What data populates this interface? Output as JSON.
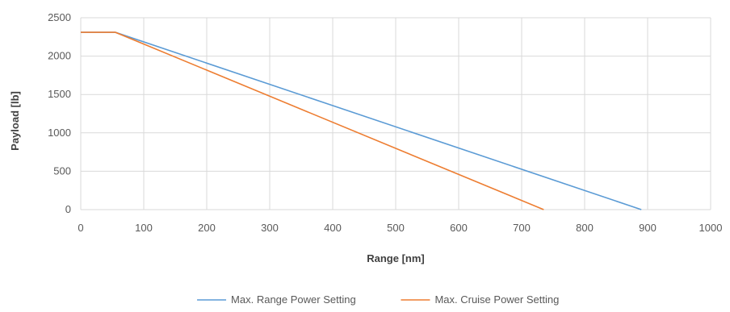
{
  "chart_data": {
    "type": "line",
    "title": "",
    "xlabel": "Range [nm]",
    "ylabel": "Payload [lb]",
    "xlim": [
      0,
      1000
    ],
    "ylim": [
      0,
      2500
    ],
    "x_ticks": [
      0,
      100,
      200,
      300,
      400,
      500,
      600,
      700,
      800,
      900,
      1000
    ],
    "y_ticks": [
      0,
      500,
      1000,
      1500,
      2000,
      2500
    ],
    "grid": true,
    "legend_position": "bottom",
    "series": [
      {
        "name": "Max. Range Power Setting",
        "color": "#5b9bd5",
        "x": [
          0,
          55,
          890
        ],
        "y": [
          2310,
          2310,
          0
        ]
      },
      {
        "name": "Max. Cruise Power Setting",
        "color": "#ed7d31",
        "x": [
          0,
          55,
          735
        ],
        "y": [
          2310,
          2310,
          0
        ]
      }
    ]
  }
}
